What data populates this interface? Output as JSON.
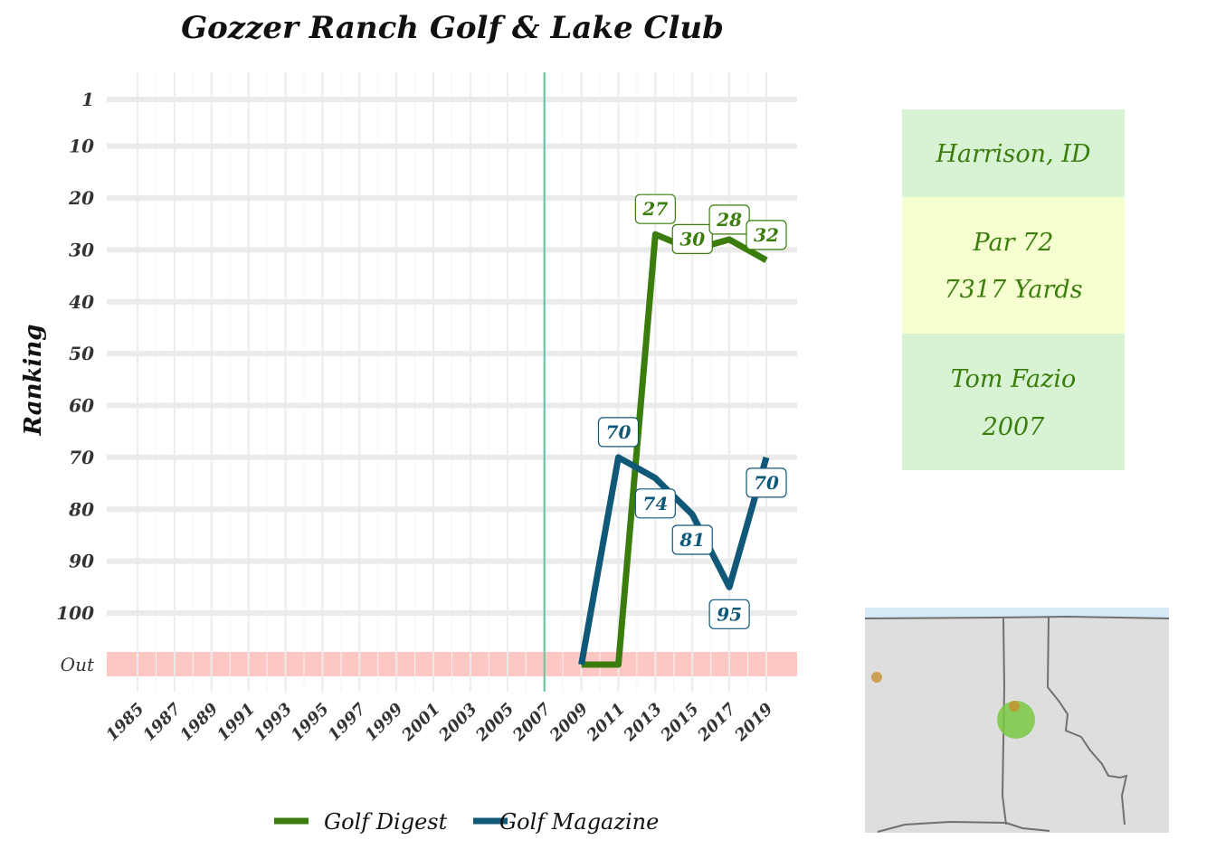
{
  "chart_data": {
    "type": "line",
    "title": "Gozzer Ranch Golf & Lake Club",
    "xlabel": "",
    "ylabel": "Ranking",
    "x_ticks": [
      "1985",
      "1987",
      "1989",
      "1991",
      "1993",
      "1995",
      "1997",
      "1999",
      "2001",
      "2003",
      "2005",
      "2007",
      "2009",
      "2011",
      "2013",
      "2015",
      "2017",
      "2019"
    ],
    "y_ticks": [
      "1",
      "10",
      "20",
      "30",
      "40",
      "50",
      "60",
      "70",
      "80",
      "90",
      "100",
      "Out"
    ],
    "xlim": [
      1983.5,
      2020.5
    ],
    "ylim": [
      1,
      100
    ],
    "out_rank": 110,
    "opened_year": 2007,
    "grid": true,
    "legend": "bottom",
    "series": [
      {
        "name": "Golf Digest",
        "color": "#3a7d0c",
        "x": [
          2009,
          2011,
          2013,
          2015,
          2017,
          2019
        ],
        "y": [
          "Out",
          "Out",
          27,
          30,
          28,
          32
        ],
        "labels": [
          "",
          "",
          "27",
          "30",
          "28",
          "32"
        ]
      },
      {
        "name": "Golf Magazine",
        "color": "#0f5878",
        "x": [
          2009,
          2011,
          2013,
          2015,
          2017,
          2019
        ],
        "y": [
          "Out",
          70,
          74,
          81,
          95,
          70
        ],
        "labels": [
          "",
          "70",
          "74",
          "81",
          "95",
          "70"
        ]
      }
    ]
  },
  "info": {
    "location": "Harrison, ID",
    "par": "Par 72",
    "yardage": "7317 Yards",
    "architect": "Tom Fazio",
    "year": "2007",
    "colors": {
      "green_cell": "#d8f3d3",
      "yellow_cell": "#f6ffcf",
      "text": "#3a7d0c"
    }
  },
  "map": {
    "background": "#dedede",
    "border_color": "#707070",
    "water_color": "#cfe6f5",
    "marker_color": "#7ac943",
    "small_marker_color": "#c8902f"
  }
}
